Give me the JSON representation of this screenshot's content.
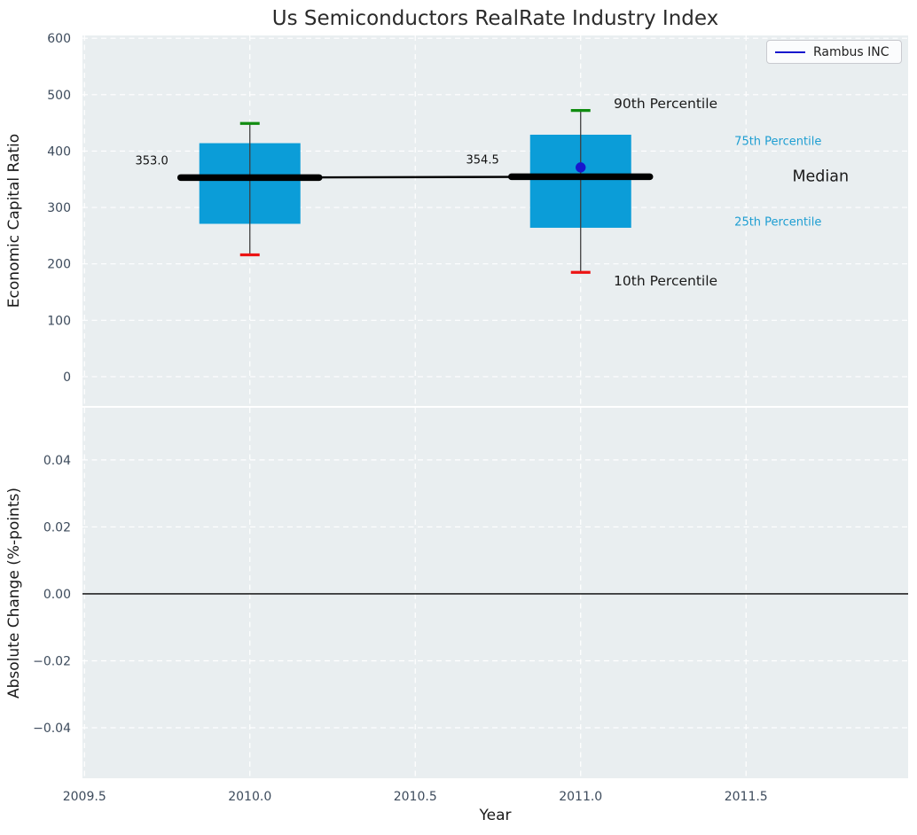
{
  "title": "Us Semiconductors RealRate Industry Index",
  "legend": {
    "label": "Rambus INC",
    "line_color": "#1717cd"
  },
  "x_axis": {
    "label": "Year",
    "ticks": [
      {
        "v": 2009.5,
        "label": "2009.5"
      },
      {
        "v": 2010.0,
        "label": "2010.0"
      },
      {
        "v": 2010.5,
        "label": "2010.5"
      },
      {
        "v": 2011.0,
        "label": "2011.0"
      },
      {
        "v": 2011.5,
        "label": "2011.5"
      }
    ]
  },
  "colors": {
    "plot_bg": "#e9eef0",
    "grid": "#ffffff",
    "box_fill": "#0b9dd8",
    "whisker": "#3f3f3f",
    "cap_top": "#108c10",
    "cap_bottom": "#ec1313",
    "median": "#000000",
    "company": "#1717cd",
    "tick_text": "#3d4b5c",
    "annotation_cyan": "#1e9ed2",
    "annotation_black": "#1a1a1a"
  },
  "chart_data": [
    {
      "type": "boxplot",
      "title": "Us Semiconductors RealRate Industry Index",
      "ylabel": "Economic Capital Ratio",
      "xlabel": "Year",
      "ylim": [
        -52,
        605
      ],
      "xlim": [
        2009.494,
        2011.99
      ],
      "grid": true,
      "yticks": [
        {
          "v": 0,
          "label": "0"
        },
        {
          "v": 100,
          "label": "100"
        },
        {
          "v": 200,
          "label": "200"
        },
        {
          "v": 300,
          "label": "300"
        },
        {
          "v": 400,
          "label": "400"
        },
        {
          "v": 500,
          "label": "500"
        },
        {
          "v": 600,
          "label": "600"
        }
      ],
      "boxes": [
        {
          "x": 2010,
          "p10": 216,
          "p25": 271,
          "median": 353.0,
          "p75": 414,
          "p90": 449,
          "median_label": "353.0"
        },
        {
          "x": 2011,
          "p10": 185,
          "p25": 264,
          "median": 354.5,
          "p75": 429,
          "p90": 472,
          "median_label": "354.5"
        }
      ],
      "median_trend": [
        [
          2010,
          353.0
        ],
        [
          2011,
          354.5
        ]
      ],
      "company_series": {
        "name": "Rambus INC",
        "points": [
          [
            2011,
            371
          ]
        ]
      },
      "annotations": [
        {
          "text": "90th Percentile",
          "x": 2011.1,
          "y": 485,
          "style": "black-lg"
        },
        {
          "text": "10th Percentile",
          "x": 2011.1,
          "y": 170,
          "style": "black-lg"
        },
        {
          "text": "75th Percentile",
          "x": 2011.465,
          "y": 418,
          "style": "cyan"
        },
        {
          "text": "Median",
          "x": 2011.64,
          "y": 356,
          "style": "black-xl"
        },
        {
          "text": "25th Percentile",
          "x": 2011.465,
          "y": 275,
          "style": "cyan"
        }
      ]
    },
    {
      "type": "line",
      "ylabel": "Absolute Change (%-points)",
      "ylim": [
        -0.0551,
        0.0556
      ],
      "xlim": [
        2009.494,
        2011.99
      ],
      "grid": true,
      "zero_line": 0.0,
      "yticks": [
        {
          "v": 0.04,
          "label": "0.04"
        },
        {
          "v": 0.02,
          "label": "0.02"
        },
        {
          "v": 0.0,
          "label": "0.00"
        },
        {
          "v": -0.02,
          "label": "−0.02"
        },
        {
          "v": -0.04,
          "label": "−0.04"
        }
      ]
    }
  ]
}
